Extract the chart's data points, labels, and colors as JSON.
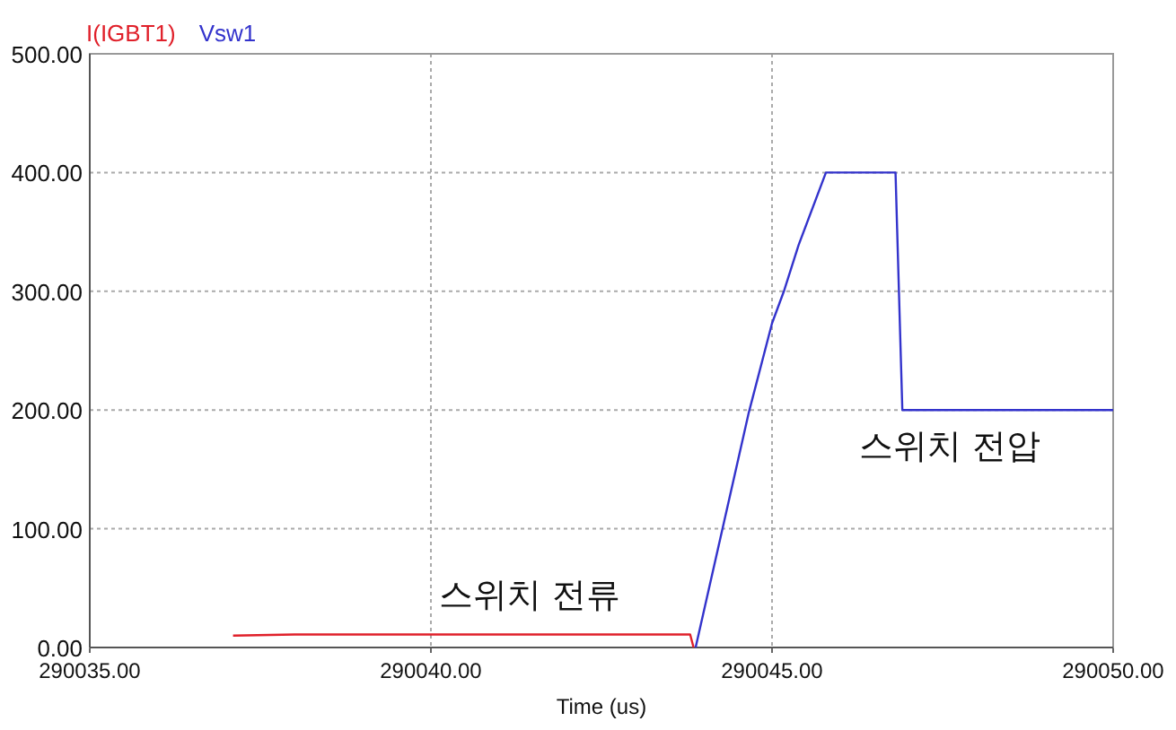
{
  "chart_data": {
    "type": "line",
    "xlabel": "Time (us)",
    "series": [
      {
        "name": "I(IGBT1)",
        "color": "#e0202a",
        "x": [
          290037.1,
          290038.0,
          290043.8,
          290043.85
        ],
        "values": [
          10,
          11,
          11,
          0
        ]
      },
      {
        "name": "Vsw1",
        "color": "#3333cc",
        "x": [
          290043.88,
          290044.66,
          290045.0,
          290045.18,
          290045.39,
          290045.79,
          290046.81,
          290046.91,
          290050.0
        ],
        "values": [
          0,
          198,
          273,
          301,
          339,
          400,
          400,
          200,
          200
        ]
      }
    ],
    "xlim": [
      290035,
      290050
    ],
    "xticks": [
      {
        "value": 290035,
        "label": "290035.00"
      },
      {
        "value": 290040,
        "label": "290040.00"
      },
      {
        "value": 290045,
        "label": "290045.00"
      },
      {
        "value": 290050,
        "label": "290050.00"
      }
    ],
    "ylim": [
      0,
      500
    ],
    "yticks": [
      {
        "value": 0,
        "label": "0.00"
      },
      {
        "value": 100,
        "label": "100.00"
      },
      {
        "value": 200,
        "label": "200.00"
      },
      {
        "value": 300,
        "label": "300.00"
      },
      {
        "value": 400,
        "label": "400.00"
      },
      {
        "value": 500,
        "label": "500.00"
      }
    ],
    "grid": true,
    "legend": "top left",
    "annotations": [
      "스위치 전류",
      "스위치 전압"
    ]
  }
}
